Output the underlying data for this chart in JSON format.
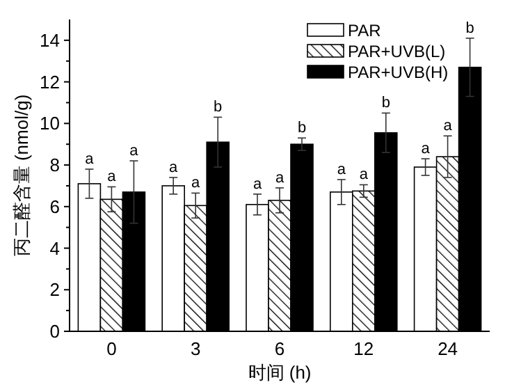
{
  "chart_data": {
    "type": "bar",
    "xlabel": "时间 (h)",
    "ylabel": "丙二醛含量 (nmol/g)",
    "categories": [
      "0",
      "3",
      "6",
      "12",
      "24"
    ],
    "ylim": [
      0,
      15
    ],
    "yticks": [
      0,
      {
        "value": 1,
        "label": null
      },
      2,
      {
        "value": 3,
        "label": null
      },
      4,
      {
        "value": 5,
        "label": null
      },
      6,
      {
        "value": 7,
        "label": null
      },
      8,
      {
        "value": 9,
        "label": null
      },
      10,
      {
        "value": 11,
        "label": null
      },
      12,
      {
        "value": 13,
        "label": null
      },
      14
    ],
    "legend": "top right",
    "grid": false,
    "series": [
      {
        "name": "PAR",
        "color": "#ffffff",
        "values": [
          7.1,
          7.0,
          6.1,
          6.7,
          7.9
        ],
        "errors": [
          0.7,
          0.4,
          0.5,
          0.6,
          0.4
        ],
        "value_labels": [
          "a",
          "a",
          "a",
          "a",
          "a"
        ]
      },
      {
        "name": "PAR+UVB(L)",
        "color": "#000000",
        "values": [
          6.35,
          6.05,
          6.3,
          6.75,
          8.4
        ],
        "errors": [
          0.6,
          0.6,
          0.6,
          0.3,
          1.0
        ],
        "value_labels": [
          "a",
          "a",
          "a",
          "a",
          "a"
        ]
      },
      {
        "name": "PAR+UVB(H)",
        "color": "#000000",
        "values": [
          6.7,
          9.1,
          9.0,
          9.55,
          12.7
        ],
        "errors": [
          1.5,
          1.2,
          0.3,
          0.95,
          1.4
        ],
        "value_labels": [
          "a",
          "b",
          "b",
          "b",
          "b"
        ]
      }
    ]
  }
}
